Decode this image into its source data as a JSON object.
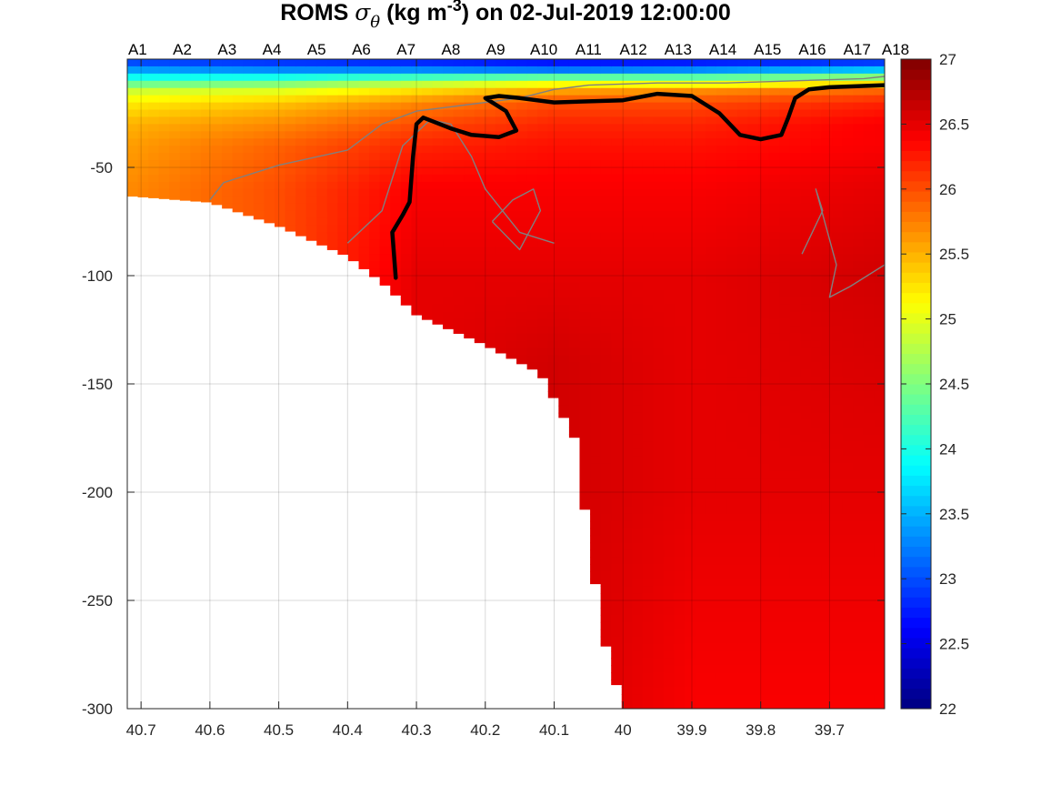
{
  "title": {
    "prefix": "ROMS ",
    "sigma": "σ",
    "sub": "θ",
    "units_a": " (kg m",
    "exp": "-3",
    "units_b": ") on 02-Jul-2019 12:00:00"
  },
  "chart_data": {
    "type": "heatmap",
    "title": "ROMS σθ (kg m-3) on 02-Jul-2019 12:00:00",
    "xlabel": "",
    "ylabel": "",
    "xlim": [
      40.72,
      39.62
    ],
    "ylim": [
      -300,
      0
    ],
    "x_reversed": true,
    "grid": true,
    "xticks": [
      40.7,
      40.6,
      40.5,
      40.4,
      40.3,
      40.2,
      40.1,
      40,
      39.9,
      39.8,
      39.7
    ],
    "xtick_labels": [
      "40.7",
      "40.6",
      "40.5",
      "40.4",
      "40.3",
      "40.2",
      "40.1",
      "40",
      "39.9",
      "39.8",
      "39.7"
    ],
    "yticks": [
      -300,
      -250,
      -200,
      -150,
      -100,
      -50
    ],
    "ytick_labels": [
      "-300",
      "-250",
      "-200",
      "-150",
      "-100",
      "-50"
    ],
    "stations": {
      "labels": [
        "A1",
        "A2",
        "A3",
        "A4",
        "A5",
        "A6",
        "A7",
        "A8",
        "A9",
        "A10",
        "A11",
        "A12",
        "A13",
        "A14",
        "A15",
        "A16",
        "A17",
        "A18"
      ],
      "lat": [
        40.705,
        40.64,
        40.575,
        40.51,
        40.445,
        40.38,
        40.315,
        40.25,
        40.185,
        40.115,
        40.05,
        39.985,
        39.92,
        39.855,
        39.79,
        39.725,
        39.66,
        39.595
      ]
    },
    "bathymetry": {
      "lat": [
        40.72,
        40.6,
        40.5,
        40.4,
        40.35,
        40.3,
        40.2,
        40.12,
        40.07,
        40.05,
        40.03,
        40.0
      ],
      "depth": [
        -63,
        -66,
        -77,
        -91,
        -103,
        -118,
        -132,
        -145,
        -175,
        -220,
        -265,
        -300
      ]
    },
    "colorbar": {
      "min": 22,
      "max": 27,
      "ticks": [
        22,
        22.5,
        23,
        23.5,
        24,
        24.5,
        25,
        25.5,
        26,
        26.5,
        27
      ],
      "tick_labels": [
        "22",
        "22.5",
        "23",
        "23.5",
        "24",
        "24.5",
        "25",
        "25.5",
        "26",
        "26.5",
        "27"
      ],
      "colormap": "jet"
    },
    "field_profiles": [
      {
        "lat": 40.72,
        "depth": [
          0,
          -5,
          -10,
          -15,
          -20,
          -30,
          -40,
          -60
        ],
        "value": [
          22.8,
          23.4,
          24.2,
          24.9,
          25.2,
          25.5,
          25.6,
          25.7
        ]
      },
      {
        "lat": 40.5,
        "depth": [
          0,
          -5,
          -10,
          -15,
          -20,
          -30,
          -40,
          -60
        ],
        "value": [
          22.7,
          23.3,
          24.3,
          25.0,
          25.4,
          25.7,
          25.9,
          26.0
        ]
      },
      {
        "lat": 40.3,
        "depth": [
          0,
          -5,
          -10,
          -15,
          -20,
          -30,
          -40,
          -60,
          -100
        ],
        "value": [
          22.6,
          23.3,
          24.6,
          25.3,
          25.7,
          26.0,
          26.2,
          26.4,
          26.5
        ]
      },
      {
        "lat": 40.1,
        "depth": [
          0,
          -5,
          -10,
          -15,
          -20,
          -30,
          -40,
          -60,
          -100,
          -140
        ],
        "value": [
          22.5,
          23.2,
          24.9,
          25.6,
          26.0,
          26.2,
          26.3,
          26.4,
          26.5,
          26.6
        ]
      },
      {
        "lat": 39.9,
        "depth": [
          0,
          -5,
          -10,
          -15,
          -20,
          -30,
          -40,
          -60,
          -100,
          -200,
          -300
        ],
        "value": [
          22.5,
          23.3,
          24.8,
          25.7,
          26.0,
          26.2,
          26.3,
          26.4,
          26.5,
          26.5,
          26.4
        ]
      },
      {
        "lat": 39.62,
        "depth": [
          0,
          -5,
          -10,
          -15,
          -20,
          -30,
          -40,
          -60,
          -100,
          -200,
          -300
        ],
        "value": [
          22.6,
          23.6,
          25.0,
          25.9,
          26.2,
          26.4,
          26.4,
          26.5,
          26.6,
          26.5,
          26.4
        ]
      }
    ],
    "isopycnal_highlight": {
      "lat": [
        40.33,
        40.335,
        40.32,
        40.31,
        40.305,
        40.3,
        40.29,
        40.25,
        40.22,
        40.18,
        40.155,
        40.17,
        40.2,
        40.18,
        40.15,
        40.1,
        40.0,
        39.95,
        39.9,
        39.86,
        39.83,
        39.8,
        39.77,
        39.76,
        39.75,
        39.73,
        39.7,
        39.62
      ],
      "depth": [
        -101,
        -80,
        -72,
        -66,
        -45,
        -30,
        -27,
        -32,
        -35,
        -36,
        -33,
        -24,
        -18,
        -17,
        -18,
        -20,
        -19,
        -16,
        -17,
        -25,
        -35,
        -37,
        -35,
        -27,
        -18,
        -14,
        -13,
        -12
      ]
    },
    "contours_gray": [
      {
        "lat": [
          40.6,
          40.58,
          40.5,
          40.4,
          40.35,
          40.3,
          40.25,
          40.2,
          40.15,
          40.1,
          40.05,
          39.95,
          39.85,
          39.75,
          39.65,
          39.62
        ],
        "depth": [
          -65,
          -57,
          -49,
          -42,
          -30,
          -24,
          -22,
          -20,
          -18,
          -14,
          -12,
          -11,
          -11,
          -10,
          -9,
          -8
        ]
      },
      {
        "lat": [
          40.4,
          40.35,
          40.32,
          40.28,
          40.25,
          40.22,
          40.2,
          40.15,
          40.1
        ],
        "depth": [
          -85,
          -70,
          -40,
          -28,
          -30,
          -45,
          -60,
          -80,
          -85
        ]
      },
      {
        "lat": [
          40.19,
          40.16,
          40.13,
          40.12,
          40.15,
          40.19
        ],
        "depth": [
          -75,
          -65,
          -60,
          -70,
          -88,
          -75
        ]
      },
      {
        "lat": [
          39.74,
          39.71,
          39.72,
          39.69,
          39.7,
          39.67,
          39.62
        ],
        "depth": [
          -90,
          -70,
          -60,
          -95,
          -110,
          -105,
          -95
        ]
      }
    ]
  }
}
